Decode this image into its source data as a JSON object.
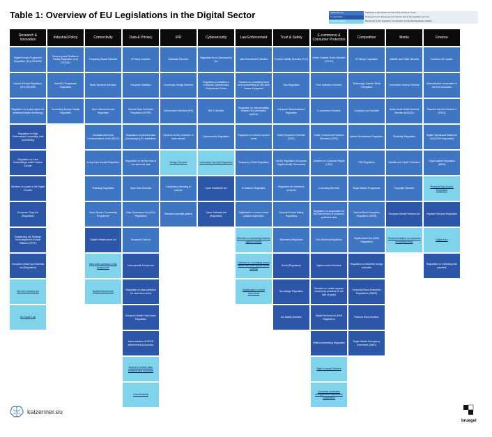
{
  "title": "Table 1: Overview of EU Legislations in the Digital Sector",
  "legend": [
    {
      "key": "Applicable law",
      "desc": "Published in the Official Journal of the European Union",
      "color": "#3f76c4"
    },
    {
      "key": "In negotiation",
      "desc": "Proposed by the European Commission and in the legislative process",
      "color": "#2c56a8"
    },
    {
      "key": "Planned initiative",
      "desc": "Mentioned by the European Commission as potential legislative initiative",
      "color": "#7fd3ea"
    }
  ],
  "columns": [
    {
      "header": "Research & Innovation",
      "cells": [
        {
          "t": "Digital Europe Programme Regulation, (EU) 2021/694",
          "s": "applicable"
        },
        {
          "t": "Horizon Europe Regulation, (EU) 2021/695",
          "s": "applicable"
        },
        {
          "t": "Regulation on a pilot regime for distributed ledger technology",
          "s": "applicable"
        },
        {
          "t": "",
          "s": "blank"
        },
        {
          "t": "Regulation on High Performance Computing Joint Undertaking",
          "s": "proposed"
        },
        {
          "t": "Regulation on Joint Undertakings under Horizon Europe",
          "s": "proposed"
        },
        {
          "t": "Decision on a path to the Digital Decade",
          "s": "proposed"
        },
        {
          "t": "European Chips Act (Regulation)",
          "s": "proposed"
        },
        {
          "t": "Establishing the Strategic Technologies for Europe Platform (STEP)",
          "s": "proposed"
        },
        {
          "t": "European critical raw materials act (Regulation)",
          "s": "proposed"
        },
        {
          "t": "Net Zero Industry Act",
          "s": "planned"
        },
        {
          "t": "EU Space Law",
          "s": "planned"
        }
      ]
    },
    {
      "header": "Industrial Policy",
      "cells": [
        {
          "t": "Recovery and Resilience Facility Regulation, (EU) 2021/241",
          "s": "applicable"
        },
        {
          "t": "InvestEU Programme Regulation",
          "s": "applicable"
        },
        {
          "t": "Connecting Europe Facility Regulation",
          "s": "applicable"
        },
        {
          "t": "",
          "s": "blank"
        },
        {
          "t": "",
          "s": "blank"
        },
        {
          "t": "",
          "s": "blank"
        },
        {
          "t": "",
          "s": "blank"
        },
        {
          "t": "",
          "s": "blank"
        },
        {
          "t": "",
          "s": "blank"
        },
        {
          "t": "",
          "s": "blank"
        },
        {
          "t": "",
          "s": "blank"
        },
        {
          "t": "",
          "s": "blank"
        }
      ]
    },
    {
      "header": "Connectivity",
      "cells": [
        {
          "t": "Frequency Bands Directive",
          "s": "applicable"
        },
        {
          "t": "Radio Spectrum Decision",
          "s": "applicable"
        },
        {
          "t": "Open Internet Access Regulation",
          "s": "applicable"
        },
        {
          "t": "European Electronic Communications Code (EECC)",
          "s": "applicable"
        },
        {
          "t": "eu top-level domain Regulation",
          "s": "applicable"
        },
        {
          "t": "Roaming Regulation",
          "s": "applicable"
        },
        {
          "t": "Union Secure Connectivity Programme",
          "s": "applicable"
        },
        {
          "t": "Gigabit Infrastructure Act",
          "s": "proposed"
        },
        {
          "t": "New radio spectrum policy programme",
          "s": "planned"
        },
        {
          "t": "Digital Networks Act",
          "s": "planned"
        },
        {
          "t": "",
          "s": "blank"
        },
        {
          "t": "",
          "s": "blank"
        }
      ]
    },
    {
      "header": "Data & Privacy",
      "cells": [
        {
          "t": "ePrivacy Directive",
          "s": "applicable"
        },
        {
          "t": "European Statistics",
          "s": "applicable"
        },
        {
          "t": "General Data Protection Regulation (GDPR)",
          "s": "applicable"
        },
        {
          "t": "Regulation on personal data processing by EU institutions",
          "s": "applicable"
        },
        {
          "t": "Regulation on the free flow of non-personal data",
          "s": "applicable"
        },
        {
          "t": "Open Data Directive",
          "s": "applicable"
        },
        {
          "t": "Data Governance Act (DGA Regulation)",
          "s": "applicable"
        },
        {
          "t": "European Data Act",
          "s": "applicable"
        },
        {
          "t": "Interoperable Europe Act",
          "s": "proposed"
        },
        {
          "t": "Regulation on data collection for short-term rental",
          "s": "proposed"
        },
        {
          "t": "European Health Data Space Regulation",
          "s": "proposed"
        },
        {
          "t": "Harmonisation of GDPR enforcement procedures",
          "s": "proposed"
        },
        {
          "t": "Access to vehicle data, functions and resources",
          "s": "planned"
        },
        {
          "t": "GreenData4all",
          "s": "planned"
        }
      ]
    },
    {
      "header": "IPR",
      "cells": [
        {
          "t": "Database Directive",
          "s": "applicable"
        },
        {
          "t": "Community Design Directive",
          "s": "applicable"
        },
        {
          "t": "Enforcement Directive (IPR)",
          "s": "applicable"
        },
        {
          "t": "Directive on the protection of trade secrets",
          "s": "applicable"
        },
        {
          "t": "Design Directive",
          "s": "planned"
        },
        {
          "t": "Compulsory licensing of patents",
          "s": "applicable"
        },
        {
          "t": "Standard essential patents",
          "s": "applicable"
        },
        {
          "t": "",
          "s": "blank"
        },
        {
          "t": "",
          "s": "blank"
        },
        {
          "t": "",
          "s": "blank"
        },
        {
          "t": "",
          "s": "blank"
        },
        {
          "t": "",
          "s": "blank"
        }
      ]
    },
    {
      "header": "Cybersecurity",
      "cells": [
        {
          "t": "Regulation for a Cybersecurity Act",
          "s": "applicable"
        },
        {
          "t": "Regulation to establish a European Cybersecurity Competence Centre",
          "s": "applicable"
        },
        {
          "t": "NIS 2 Directive",
          "s": "applicable"
        },
        {
          "t": "Cybersecurity Regulation",
          "s": "applicable"
        },
        {
          "t": "Information Security Regulation",
          "s": "planned"
        },
        {
          "t": "Cyber Resilience Act",
          "s": "proposed"
        },
        {
          "t": "Cyber Solidarity Act (Regulation)",
          "s": "proposed"
        },
        {
          "t": "",
          "s": "blank"
        },
        {
          "t": "",
          "s": "blank"
        },
        {
          "t": "",
          "s": "blank"
        },
        {
          "t": "",
          "s": "blank"
        },
        {
          "t": "",
          "s": "blank"
        }
      ]
    },
    {
      "header": "Law Enforcement",
      "cells": [
        {
          "t": "Law Enforcement Directive",
          "s": "applicable"
        },
        {
          "t": "Directive on combating fraud and counterfeiting of non-cash means of payment",
          "s": "applicable"
        },
        {
          "t": "Regulation on interoperability between EU information systems",
          "s": "applicable"
        },
        {
          "t": "Regulation on terrorist content online",
          "s": "applicable"
        },
        {
          "t": "Temporary CSAM Regulation",
          "s": "applicable"
        },
        {
          "t": "E-evidence Regulation",
          "s": "applicable"
        },
        {
          "t": "Digitalisation of cross-border judicial cooperation",
          "s": "applicable"
        },
        {
          "t": "Directive on combating violence against women",
          "s": "planned"
        },
        {
          "t": "Directive for combating sexual abuse and child sexual abuse material",
          "s": "planned"
        },
        {
          "t": "Digitalisation of travel documents",
          "s": "planned"
        },
        {
          "t": "",
          "s": "blank"
        },
        {
          "t": "",
          "s": "blank"
        }
      ]
    },
    {
      "header": "Trust & Safety",
      "cells": [
        {
          "t": "Product Liability Directive (PLD)",
          "s": "applicable"
        },
        {
          "t": "Toys Regulation",
          "s": "applicable"
        },
        {
          "t": "European Standardisation Regulation",
          "s": "applicable"
        },
        {
          "t": "Radio Equipment Directive (RED)",
          "s": "applicable"
        },
        {
          "t": "eIDAS Regulation (European Digital Identity Framework)",
          "s": "applicable"
        },
        {
          "t": "Regulation for machinery products",
          "s": "applicable"
        },
        {
          "t": "General Product Safety Regulation",
          "s": "applicable"
        },
        {
          "t": "Machinery Regulation",
          "s": "applicable"
        },
        {
          "t": "AI Act (Regulation)",
          "s": "proposed"
        },
        {
          "t": "Eco-design Regulation",
          "s": "proposed"
        },
        {
          "t": "AI Liability Directive",
          "s": "proposed"
        },
        {
          "t": "",
          "s": "blank"
        }
      ]
    },
    {
      "header": "E-commerce & Consumer Protection",
      "cells": [
        {
          "t": "Unfair Contract Terms Directive (UCTD)",
          "s": "applicable"
        },
        {
          "t": "Price Indication Directive",
          "s": "applicable"
        },
        {
          "t": "E-commerce Directive",
          "s": "applicable"
        },
        {
          "t": "Unfair Commercial Practices Directive (UCPD)",
          "s": "applicable"
        },
        {
          "t": "Directive on Consumer Rights (CRD)",
          "s": "applicable"
        },
        {
          "t": "e-invoicing Directive",
          "s": "applicable"
        },
        {
          "t": "Regulation on cooperation for the enforcement of consumer protection laws",
          "s": "applicable"
        },
        {
          "t": "Geo-Blocking Regulation",
          "s": "applicable"
        },
        {
          "t": "Digital content Directive",
          "s": "proposed"
        },
        {
          "t": "Directive on certain aspects concerning contracts for the sale of goods",
          "s": "proposed"
        },
        {
          "t": "Digital Services Act (DSA Regulation)",
          "s": "proposed"
        },
        {
          "t": "Political Advertising Regulation",
          "s": "proposed"
        },
        {
          "t": "Right to repair Directive",
          "s": "planned"
        },
        {
          "t": "Consumer protection: strengthened enforcement cooperation",
          "s": "planned"
        }
      ]
    },
    {
      "header": "Competition",
      "cells": [
        {
          "t": "EC Merger regulation",
          "s": "applicable"
        },
        {
          "t": "Technology Transfer Block Exemption",
          "s": "applicable"
        },
        {
          "t": "Company Law Directive",
          "s": "applicable"
        },
        {
          "t": "Market Surveillance Regulation",
          "s": "applicable"
        },
        {
          "t": "P2B Regulation",
          "s": "applicable"
        },
        {
          "t": "Single Market Programme",
          "s": "applicable"
        },
        {
          "t": "Vertical Block Exemption Regulation (VBER)",
          "s": "applicable"
        },
        {
          "t": "Digital Market Act (DMA Regulation)",
          "s": "applicable"
        },
        {
          "t": "Regulation on distortive foreign subsidies",
          "s": "proposed"
        },
        {
          "t": "Horizontal Block Exemption Regulations (HBER)",
          "s": "proposed"
        },
        {
          "t": "Platform Work Directive",
          "s": "proposed"
        },
        {
          "t": "Single Market Emergency Instrument (SMEI)",
          "s": "proposed"
        },
        {
          "t": "",
          "s": "blank"
        }
      ]
    },
    {
      "header": "Media",
      "cells": [
        {
          "t": "Satellite and Cable Directive",
          "s": "applicable"
        },
        {
          "t": "Information Society Directive",
          "s": "applicable"
        },
        {
          "t": "Audio-visual Media Services Directive (AVMSD)",
          "s": "applicable"
        },
        {
          "t": "Portability Regulation",
          "s": "applicable"
        },
        {
          "t": "Satellite and Cable II Directive",
          "s": "applicable"
        },
        {
          "t": "Copyright Directive",
          "s": "applicable"
        },
        {
          "t": "European Media Freedom Act",
          "s": "proposed"
        },
        {
          "t": "Recommendation on measures to combat piracy",
          "s": "planned"
        },
        {
          "t": "",
          "s": "blank"
        },
        {
          "t": "",
          "s": "blank"
        },
        {
          "t": "",
          "s": "blank"
        },
        {
          "t": "",
          "s": "blank"
        }
      ]
    },
    {
      "header": "Finance",
      "cells": [
        {
          "t": "Common VAT system",
          "s": "applicable"
        },
        {
          "t": "Administrative cooperation in the field of taxation",
          "s": "applicable"
        },
        {
          "t": "Payment Service Directive 2 (PSD2)",
          "s": "applicable"
        },
        {
          "t": "Digital Operational Resilience Act (DORA Regulation)",
          "s": "applicable"
        },
        {
          "t": "Crypto-assets Regulation (MiCA)",
          "s": "applicable"
        },
        {
          "t": "Financial Data Access Regulation",
          "s": "planned"
        },
        {
          "t": "Payment Services Regulation",
          "s": "proposed"
        },
        {
          "t": "Digital euro",
          "s": "planned"
        },
        {
          "t": "Regulation on combating late payment",
          "s": "proposed"
        },
        {
          "t": "",
          "s": "blank"
        },
        {
          "t": "",
          "s": "blank"
        },
        {
          "t": "",
          "s": "blank"
        }
      ]
    }
  ],
  "footer": {
    "site": "kaizenner.eu",
    "bruegel": "bruegel",
    "brain_icon": "brain-icon"
  }
}
